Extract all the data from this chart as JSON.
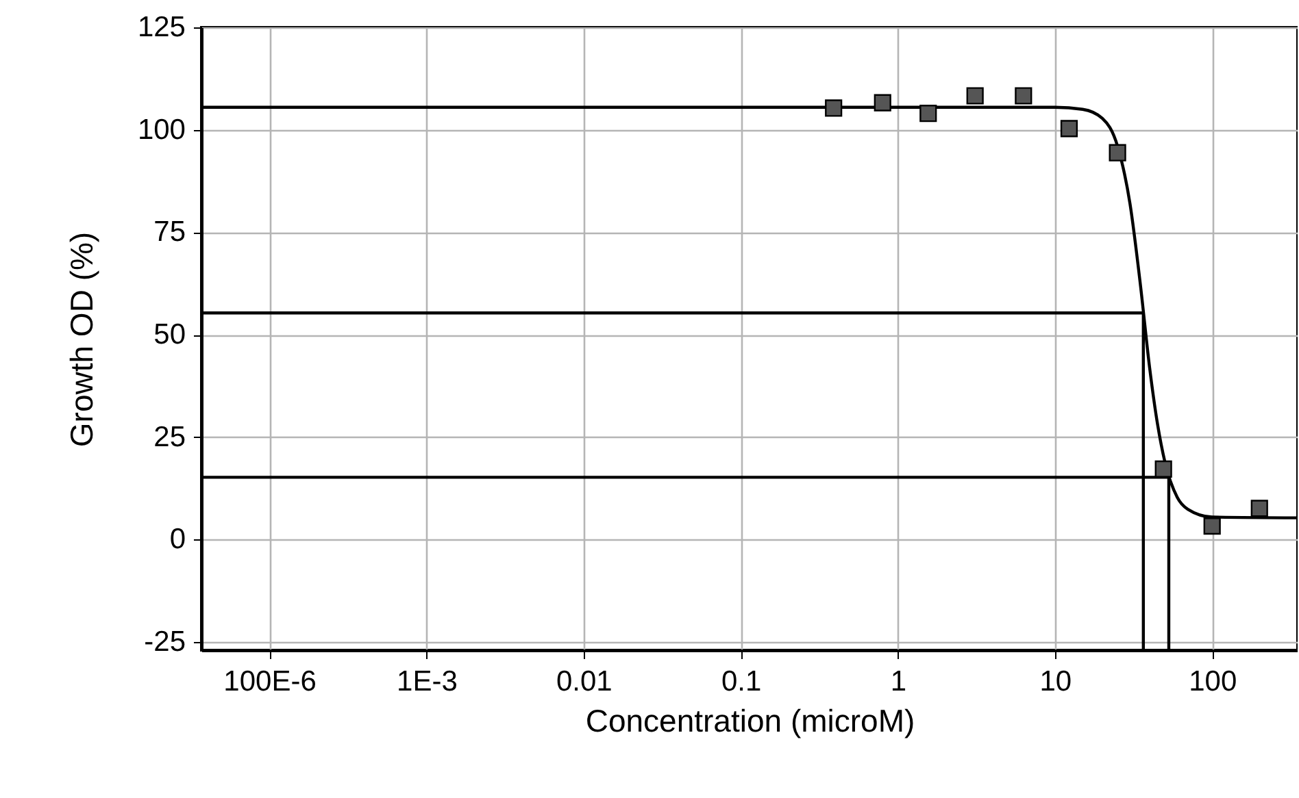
{
  "chart_data": {
    "type": "scatter",
    "xlabel": "Concentration (microM)",
    "ylabel": "Growth OD (%)",
    "log": "x",
    "xlim": [
      3.7e-05,
      350
    ],
    "xticks": [
      {
        "value": 0.0001,
        "label": "100E-6"
      },
      {
        "value": 0.001,
        "label": "1E-3"
      },
      0.01,
      0.1,
      1,
      10,
      100
    ],
    "ylim": [
      -27,
      125
    ],
    "yticks": [
      -25,
      0,
      25,
      50,
      75,
      100,
      125
    ],
    "grid": true,
    "series": [
      {
        "type": "line",
        "color": "#000000",
        "marker": "none",
        "x": [
          3.7e-05,
          36.5,
          36.5
        ],
        "values": [
          55.3,
          55.3,
          -27
        ]
      },
      {
        "type": "line",
        "color": "#000000",
        "marker": "none",
        "x": [
          3.7e-05,
          53,
          53
        ],
        "values": [
          15.2,
          15.2,
          -27
        ]
      },
      {
        "type": "line",
        "color": "#000000",
        "marker": "none",
        "x": [
          3.7e-05,
          1,
          10,
          15,
          20,
          25,
          30,
          35,
          40,
          45,
          50,
          60,
          70,
          100,
          350
        ],
        "values": [
          105.5,
          105.5,
          105.5,
          105,
          102.8,
          96,
          82,
          62,
          42,
          28,
          19,
          10.3,
          7.4,
          5.5,
          5.3
        ]
      },
      {
        "color": "#555555",
        "marker": "square",
        "x": [
          0.39,
          0.8,
          1.56,
          3.1,
          6.3,
          12.3,
          25,
          49,
          100,
          200
        ],
        "values": [
          105.3,
          106.6,
          104,
          108.3,
          108.3,
          100.3,
          94.4,
          17.2,
          3.3,
          7.6
        ]
      }
    ]
  }
}
